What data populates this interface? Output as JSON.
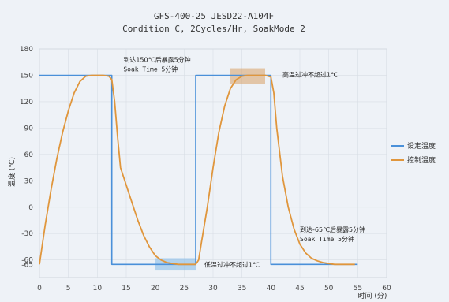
{
  "chart_data": {
    "type": "line",
    "title": "GFS-400-25    JESD22-A104F",
    "subtitle": "Condition C, 2Cycles/Hr, SoakMode 2",
    "xlabel": "时间 (分)",
    "ylabel": "温度 (℃)",
    "xlim": [
      0,
      60
    ],
    "ylim": [
      -80,
      180
    ],
    "xticks": [
      0,
      5,
      10,
      15,
      20,
      25,
      30,
      35,
      40,
      45,
      50,
      55,
      60
    ],
    "yticks": [
      180,
      150,
      120,
      90,
      60,
      30,
      0,
      -30,
      -60,
      -65
    ],
    "grid": true,
    "legend_position": "right",
    "colors": {
      "setpoint": "#4a90d9",
      "control": "#e0963c",
      "highlight_hot": "#d9a066",
      "highlight_cold": "#7fb8e8"
    },
    "series": [
      {
        "name": "设定温度",
        "color": "#4a90d9",
        "x": [
          0,
          12.5,
          12.5,
          27,
          27,
          40,
          40,
          55
        ],
        "y": [
          150,
          150,
          -65,
          -65,
          150,
          150,
          -65,
          -65
        ]
      },
      {
        "name": "控制温度",
        "color": "#e0963c",
        "x": [
          0,
          1,
          2,
          3,
          4,
          5,
          6,
          7,
          8,
          9,
          10,
          11,
          12,
          12.5,
          13,
          13.5,
          14,
          15,
          16,
          17,
          18,
          19,
          20,
          21,
          22,
          23,
          24,
          25,
          26,
          27,
          27.5,
          28,
          29,
          30,
          31,
          32,
          33,
          34,
          35,
          36,
          37,
          38,
          39,
          40,
          40.5,
          41,
          42,
          43,
          44,
          45,
          46,
          47,
          48,
          49,
          50,
          51,
          52,
          53,
          54.5
        ],
        "y": [
          -65,
          -20,
          20,
          55,
          85,
          110,
          130,
          143,
          149,
          150,
          150,
          150,
          149,
          145,
          120,
          80,
          45,
          25,
          5,
          -15,
          -32,
          -45,
          -55,
          -60,
          -63,
          -64,
          -65,
          -65,
          -65,
          -65,
          -60,
          -40,
          0,
          45,
          85,
          115,
          135,
          145,
          149,
          150,
          150,
          150,
          150,
          148,
          130,
          90,
          35,
          0,
          -25,
          -42,
          -52,
          -58,
          -61,
          -63,
          -64,
          -65,
          -65,
          -65,
          -65
        ]
      }
    ],
    "highlights": [
      {
        "name": "hot-overshoot",
        "x": [
          33,
          39
        ],
        "y": [
          140,
          158
        ]
      },
      {
        "name": "cold-overshoot",
        "x": [
          20,
          27
        ],
        "y": [
          -72,
          -58
        ]
      }
    ],
    "annotations": [
      {
        "lines": [
          "到达150℃后暴露5分钟",
          "Soak Time 5分钟"
        ],
        "x": 14.5,
        "y": 165,
        "anchor": "start"
      },
      {
        "lines": [
          "高温过冲不超过1℃"
        ],
        "x": 42,
        "y": 148,
        "anchor": "start"
      },
      {
        "lines": [
          "低温过冲不超过1℃"
        ],
        "x": 28.5,
        "y": -68,
        "anchor": "start"
      },
      {
        "lines": [
          "到达-65℃后暴露5分钟",
          "Soak Time 5分钟"
        ],
        "x": 45,
        "y": -28,
        "anchor": "start"
      }
    ]
  }
}
